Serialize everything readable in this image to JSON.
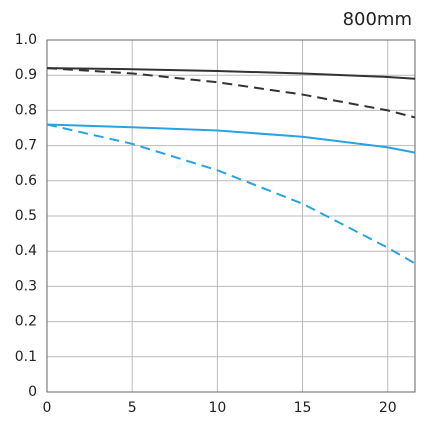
{
  "chart_data": {
    "type": "line",
    "title": "800mm",
    "x": [
      0,
      5,
      10,
      15,
      20,
      21.6
    ],
    "series": [
      {
        "color": "#333333",
        "dash": false,
        "values": [
          0.92,
          0.917,
          0.912,
          0.905,
          0.895,
          0.89
        ]
      },
      {
        "color": "#333333",
        "dash": true,
        "values": [
          0.92,
          0.905,
          0.88,
          0.845,
          0.8,
          0.78
        ]
      },
      {
        "color": "#29a3e0",
        "dash": false,
        "values": [
          0.76,
          0.752,
          0.743,
          0.725,
          0.695,
          0.68
        ]
      },
      {
        "color": "#29a3e0",
        "dash": true,
        "values": [
          0.76,
          0.705,
          0.63,
          0.535,
          0.41,
          0.365
        ]
      }
    ],
    "xlim": [
      0,
      21.6
    ],
    "xticks": [
      0,
      5,
      10,
      15,
      20
    ],
    "ylim": [
      0,
      1
    ],
    "yticks": [
      0,
      0.1,
      0.2,
      0.3,
      0.4,
      0.5,
      0.6,
      0.7,
      0.8,
      0.9,
      {
        "value": 1,
        "label": "1.0"
      }
    ],
    "grid": true
  }
}
